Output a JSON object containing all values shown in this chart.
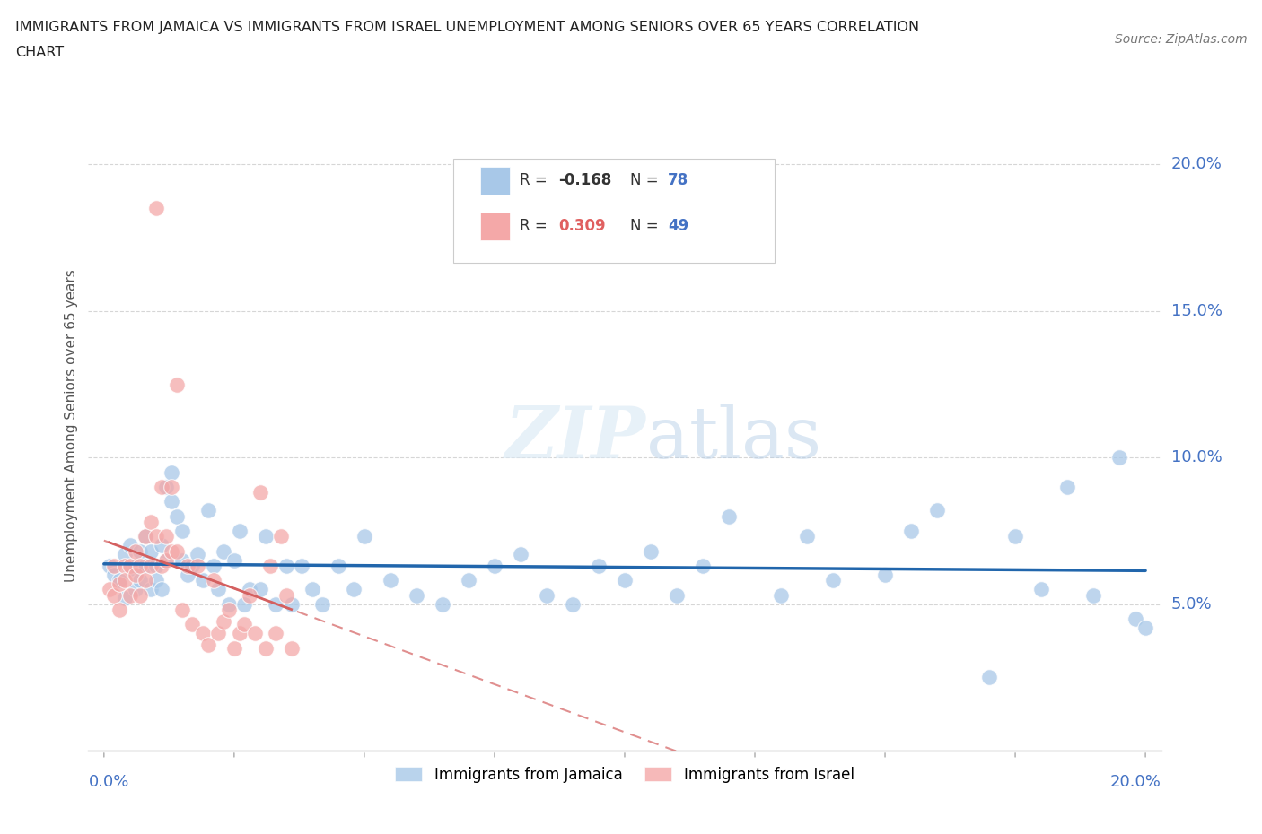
{
  "title_line1": "IMMIGRANTS FROM JAMAICA VS IMMIGRANTS FROM ISRAEL UNEMPLOYMENT AMONG SENIORS OVER 65 YEARS CORRELATION",
  "title_line2": "CHART",
  "source": "Source: ZipAtlas.com",
  "ylabel": "Unemployment Among Seniors over 65 years",
  "jamaica_color": "#a8c8e8",
  "israel_color": "#f4a8a8",
  "jamaica_line_color": "#2166ac",
  "israel_line_color": "#d46060",
  "jamaica_R": -0.168,
  "jamaica_N": 78,
  "israel_R": 0.309,
  "israel_N": 49,
  "watermark": "ZIPatlas",
  "xlim": [
    0.0,
    0.2
  ],
  "ylim": [
    0.0,
    0.22
  ],
  "yticks": [
    0.05,
    0.1,
    0.15,
    0.2
  ],
  "ytick_labels": [
    "5.0%",
    "10.0%",
    "15.0%",
    "20.0%"
  ],
  "jamaica_x": [
    0.001,
    0.002,
    0.003,
    0.004,
    0.004,
    0.005,
    0.005,
    0.006,
    0.006,
    0.007,
    0.007,
    0.008,
    0.008,
    0.009,
    0.009,
    0.01,
    0.01,
    0.011,
    0.011,
    0.012,
    0.012,
    0.013,
    0.013,
    0.014,
    0.015,
    0.015,
    0.016,
    0.017,
    0.018,
    0.019,
    0.02,
    0.021,
    0.022,
    0.023,
    0.024,
    0.025,
    0.026,
    0.027,
    0.028,
    0.03,
    0.031,
    0.033,
    0.035,
    0.036,
    0.038,
    0.04,
    0.042,
    0.045,
    0.048,
    0.05,
    0.055,
    0.06,
    0.065,
    0.07,
    0.075,
    0.08,
    0.085,
    0.09,
    0.095,
    0.1,
    0.105,
    0.11,
    0.115,
    0.12,
    0.13,
    0.135,
    0.14,
    0.15,
    0.155,
    0.16,
    0.17,
    0.175,
    0.18,
    0.185,
    0.19,
    0.195,
    0.198,
    0.2
  ],
  "jamaica_y": [
    0.063,
    0.06,
    0.058,
    0.067,
    0.052,
    0.062,
    0.07,
    0.063,
    0.055,
    0.068,
    0.058,
    0.073,
    0.063,
    0.055,
    0.068,
    0.063,
    0.058,
    0.07,
    0.055,
    0.065,
    0.09,
    0.085,
    0.095,
    0.08,
    0.065,
    0.075,
    0.06,
    0.063,
    0.067,
    0.058,
    0.082,
    0.063,
    0.055,
    0.068,
    0.05,
    0.065,
    0.075,
    0.05,
    0.055,
    0.055,
    0.073,
    0.05,
    0.063,
    0.05,
    0.063,
    0.055,
    0.05,
    0.063,
    0.055,
    0.073,
    0.058,
    0.053,
    0.05,
    0.058,
    0.063,
    0.067,
    0.053,
    0.05,
    0.063,
    0.058,
    0.068,
    0.053,
    0.063,
    0.08,
    0.053,
    0.073,
    0.058,
    0.06,
    0.075,
    0.082,
    0.025,
    0.073,
    0.055,
    0.09,
    0.053,
    0.1,
    0.045,
    0.042
  ],
  "israel_x": [
    0.001,
    0.002,
    0.002,
    0.003,
    0.003,
    0.004,
    0.004,
    0.005,
    0.005,
    0.006,
    0.006,
    0.007,
    0.007,
    0.008,
    0.008,
    0.009,
    0.009,
    0.01,
    0.01,
    0.011,
    0.011,
    0.012,
    0.012,
    0.013,
    0.013,
    0.014,
    0.014,
    0.015,
    0.016,
    0.017,
    0.018,
    0.019,
    0.02,
    0.021,
    0.022,
    0.023,
    0.024,
    0.025,
    0.026,
    0.027,
    0.028,
    0.029,
    0.03,
    0.031,
    0.032,
    0.033,
    0.034,
    0.035,
    0.036
  ],
  "israel_y": [
    0.055,
    0.053,
    0.063,
    0.048,
    0.057,
    0.063,
    0.058,
    0.053,
    0.063,
    0.06,
    0.068,
    0.063,
    0.053,
    0.073,
    0.058,
    0.078,
    0.063,
    0.185,
    0.073,
    0.09,
    0.063,
    0.065,
    0.073,
    0.068,
    0.09,
    0.068,
    0.125,
    0.048,
    0.063,
    0.043,
    0.063,
    0.04,
    0.036,
    0.058,
    0.04,
    0.044,
    0.048,
    0.035,
    0.04,
    0.043,
    0.053,
    0.04,
    0.088,
    0.035,
    0.063,
    0.04,
    0.073,
    0.053,
    0.035
  ],
  "legend_r1": "R = -0.168",
  "legend_n1": "N = 78",
  "legend_r2": "R = 0.309",
  "legend_n2": "N = 49"
}
